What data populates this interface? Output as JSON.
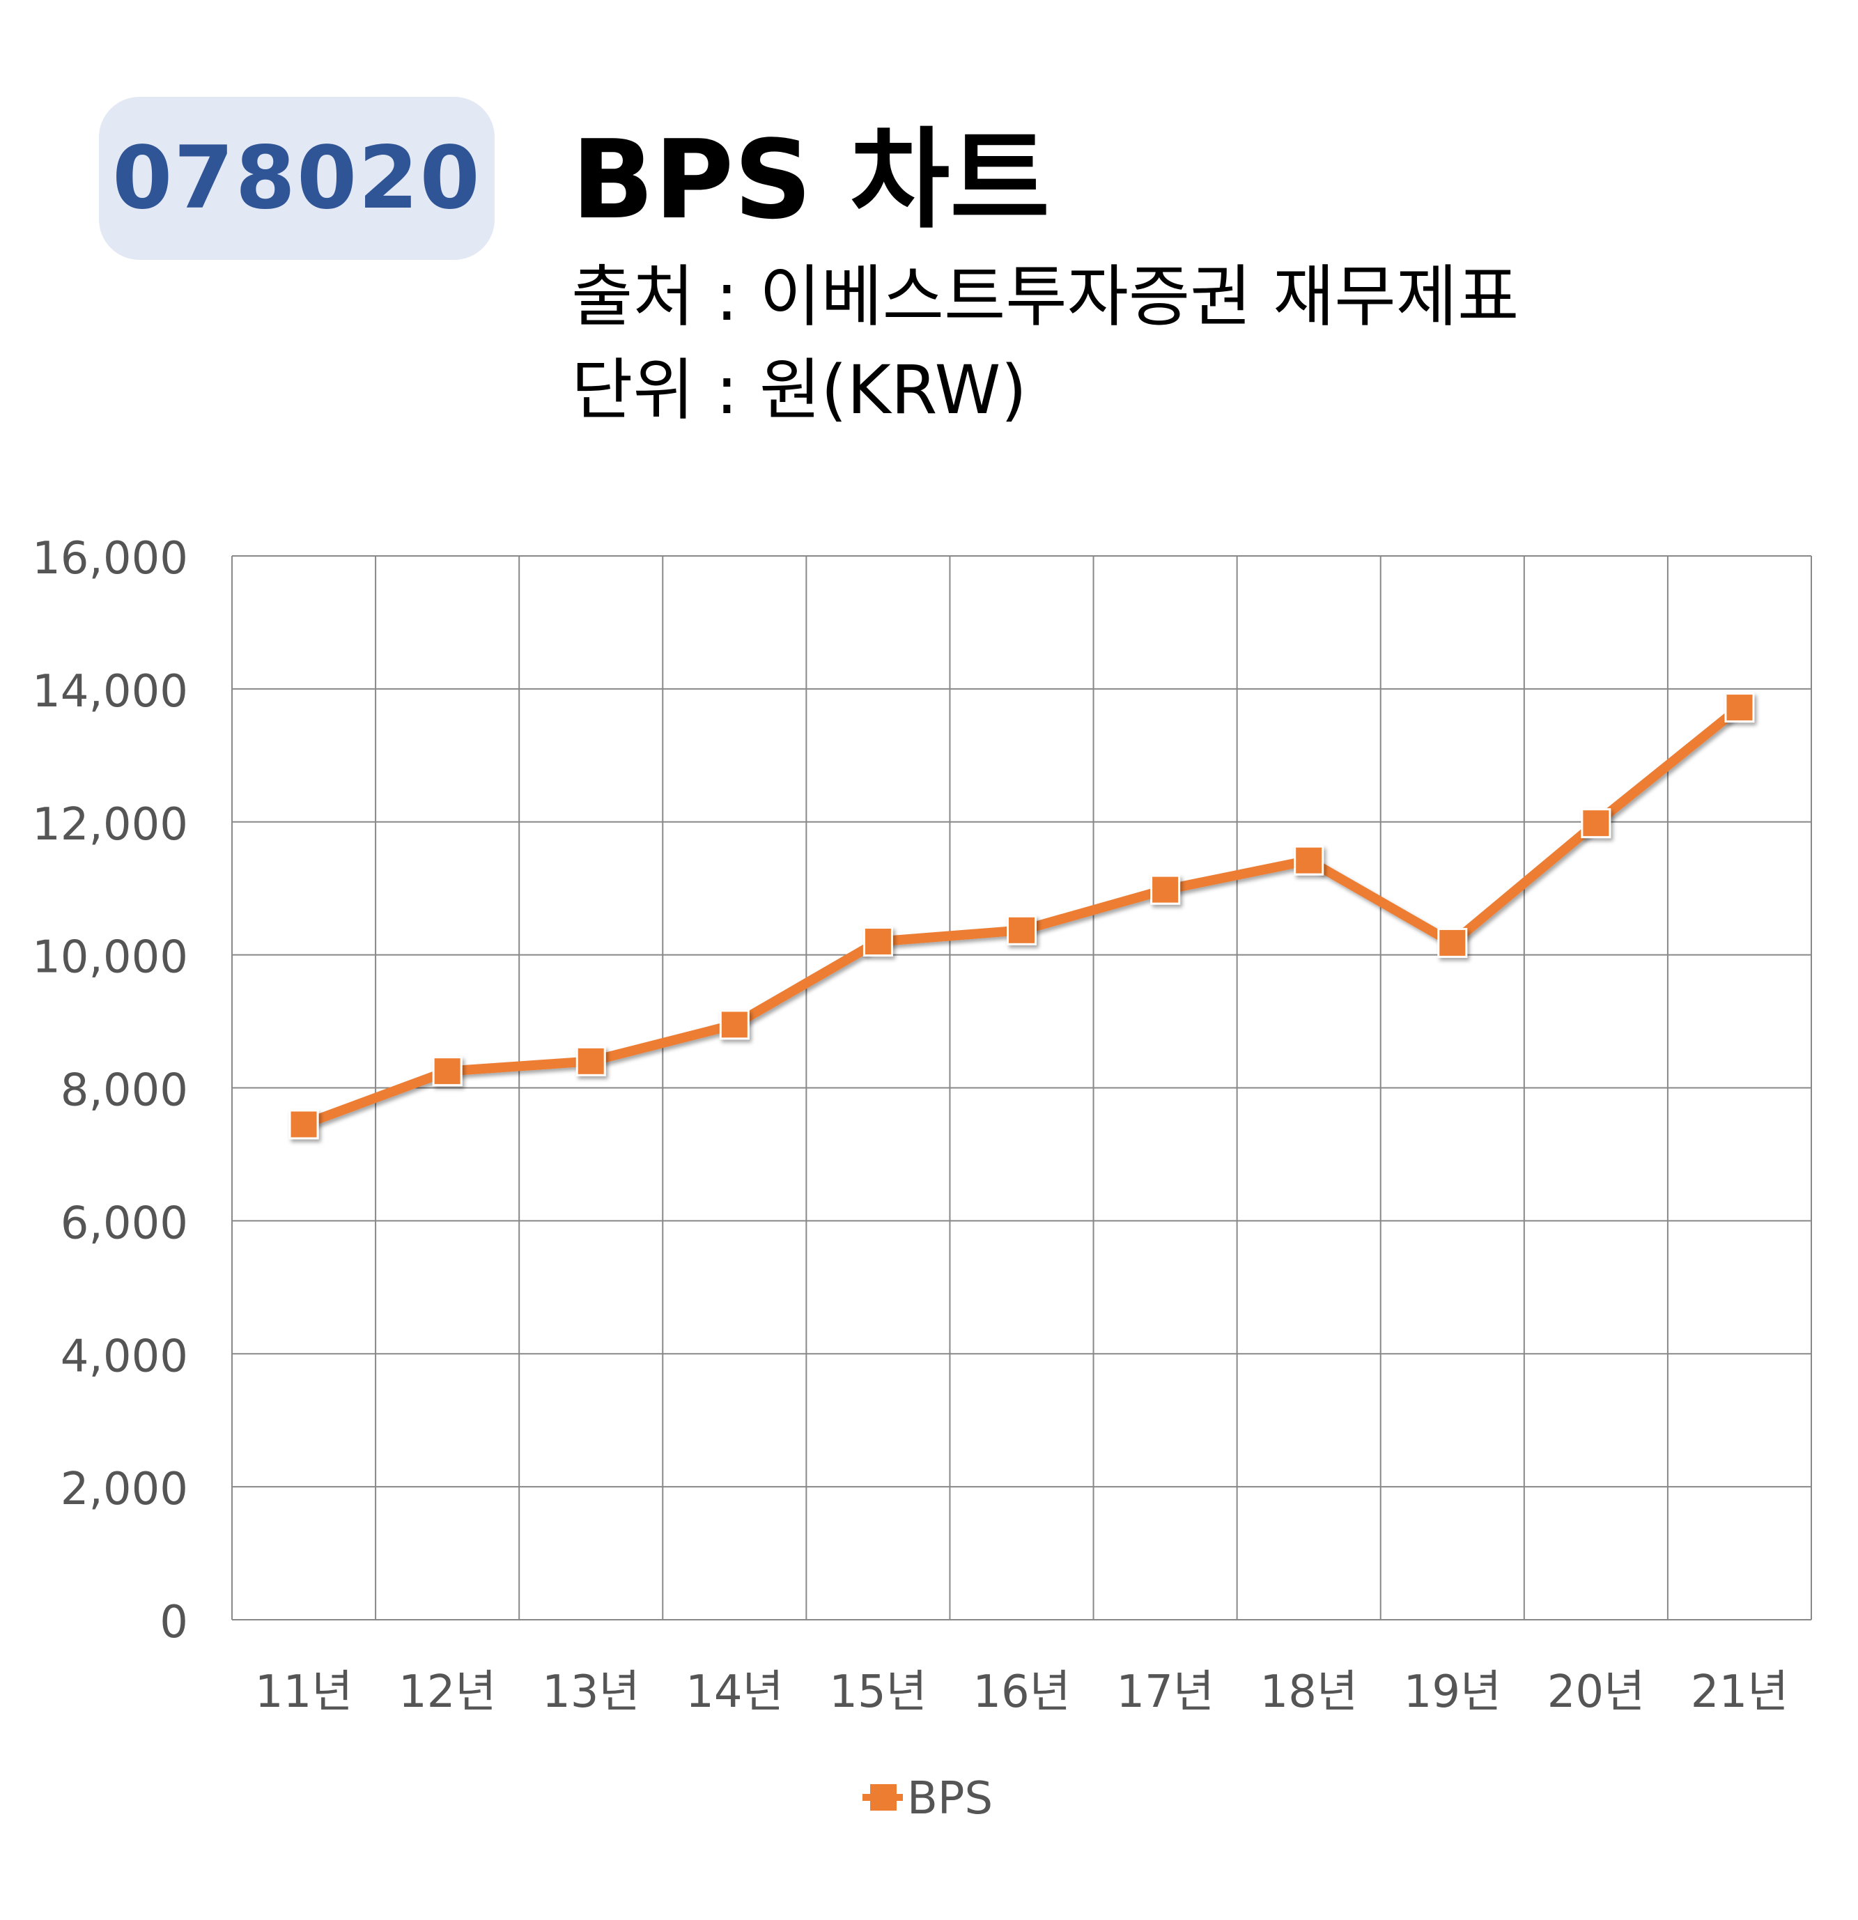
{
  "header": {
    "stock_code": "078020",
    "title": "BPS 차트",
    "source_line": "출처 : 이베스트투자증권 재무제표",
    "unit_line": "단위 : 원(KRW)"
  },
  "colors": {
    "badge_bg": "#e3e8f5",
    "badge_text": "#2f5597",
    "series": "#ed7d31",
    "grid": "#888888"
  },
  "chart_data": {
    "type": "line",
    "categories": [
      "11년",
      "12년",
      "13년",
      "14년",
      "15년",
      "16년",
      "17년",
      "18년",
      "19년",
      "20년",
      "21년"
    ],
    "series": [
      {
        "name": "BPS",
        "values": [
          7450,
          8250,
          8400,
          8950,
          10200,
          10370,
          10980,
          11420,
          10180,
          11980,
          13720
        ]
      }
    ],
    "ylim": [
      0,
      16000
    ],
    "yticks": [
      0,
      2000,
      4000,
      6000,
      8000,
      10000,
      12000,
      14000,
      16000
    ],
    "ytick_labels": [
      "0",
      "2,000",
      "4,000",
      "6,000",
      "8,000",
      "10,000",
      "12,000",
      "14,000",
      "16,000"
    ],
    "grid": true,
    "legend_position": "bottom",
    "marker": "square"
  }
}
